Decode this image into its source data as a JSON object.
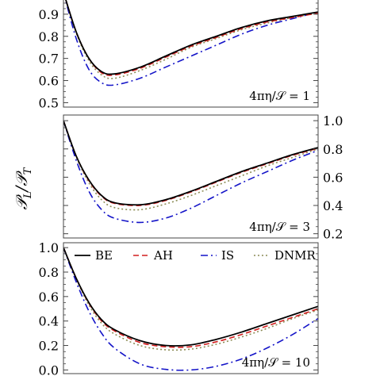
{
  "chart_data": [
    {
      "type": "line",
      "annotation": "4πη/𝒮 = 1",
      "ylim": [
        0.48,
        1.0
      ],
      "yticks": [
        0.5,
        0.6,
        0.7,
        0.8,
        0.9
      ],
      "ytick_labels": [
        "0.5",
        "0.6",
        "0.7",
        "0.8",
        "0.9"
      ],
      "ytick_side": "left",
      "x": [
        0.0,
        0.05,
        0.1,
        0.15,
        0.2,
        0.3,
        0.4,
        0.5,
        0.6,
        0.7,
        0.8,
        0.9,
        1.0
      ],
      "series": [
        {
          "name": "BE",
          "values": [
            1.0,
            0.82,
            0.7,
            0.64,
            0.63,
            0.66,
            0.71,
            0.76,
            0.8,
            0.84,
            0.87,
            0.89,
            0.91
          ]
        },
        {
          "name": "AH",
          "values": [
            1.0,
            0.82,
            0.7,
            0.635,
            0.625,
            0.655,
            0.705,
            0.755,
            0.795,
            0.835,
            0.865,
            0.885,
            0.905
          ]
        },
        {
          "name": "IS",
          "values": [
            1.0,
            0.79,
            0.65,
            0.59,
            0.58,
            0.61,
            0.66,
            0.71,
            0.76,
            0.81,
            0.85,
            0.88,
            0.91
          ]
        },
        {
          "name": "DNMR",
          "values": [
            1.0,
            0.815,
            0.69,
            0.625,
            0.61,
            0.645,
            0.695,
            0.75,
            0.79,
            0.83,
            0.86,
            0.885,
            0.905
          ]
        }
      ]
    },
    {
      "type": "line",
      "annotation": "4πη/𝒮 = 3",
      "ylim": [
        0.17,
        1.04
      ],
      "yticks": [
        0.2,
        0.4,
        0.6,
        0.8,
        1.0
      ],
      "ytick_labels": [
        "0.2",
        "0.4",
        "0.6",
        "0.8",
        "1.0"
      ],
      "ytick_side": "right",
      "x": [
        0.0,
        0.05,
        0.1,
        0.15,
        0.2,
        0.3,
        0.4,
        0.5,
        0.6,
        0.7,
        0.8,
        0.9,
        1.0
      ],
      "series": [
        {
          "name": "BE",
          "values": [
            1.0,
            0.75,
            0.58,
            0.47,
            0.42,
            0.405,
            0.44,
            0.5,
            0.57,
            0.64,
            0.7,
            0.76,
            0.81
          ]
        },
        {
          "name": "AH",
          "values": [
            1.0,
            0.75,
            0.575,
            0.465,
            0.415,
            0.4,
            0.435,
            0.495,
            0.565,
            0.635,
            0.695,
            0.755,
            0.805
          ]
        },
        {
          "name": "IS",
          "values": [
            1.0,
            0.72,
            0.5,
            0.37,
            0.31,
            0.28,
            0.31,
            0.38,
            0.47,
            0.56,
            0.64,
            0.72,
            0.79
          ]
        },
        {
          "name": "DNMR",
          "values": [
            1.0,
            0.745,
            0.56,
            0.44,
            0.385,
            0.37,
            0.41,
            0.47,
            0.54,
            0.61,
            0.68,
            0.74,
            0.8
          ]
        }
      ]
    },
    {
      "type": "line",
      "annotation": "4πη/𝒮 = 10",
      "ylim": [
        -0.03,
        1.04
      ],
      "yticks": [
        0.0,
        0.2,
        0.4,
        0.6,
        0.8,
        1.0
      ],
      "ytick_labels": [
        "0.0",
        "0.2",
        "0.4",
        "0.6",
        "0.8",
        "1.0"
      ],
      "ytick_side": "left",
      "x": [
        0.0,
        0.05,
        0.1,
        0.15,
        0.2,
        0.3,
        0.4,
        0.5,
        0.6,
        0.7,
        0.8,
        0.9,
        1.0
      ],
      "series": [
        {
          "name": "BE",
          "values": [
            1.0,
            0.75,
            0.55,
            0.41,
            0.33,
            0.24,
            0.2,
            0.205,
            0.25,
            0.31,
            0.38,
            0.45,
            0.52
          ]
        },
        {
          "name": "AH",
          "values": [
            1.0,
            0.75,
            0.545,
            0.4,
            0.32,
            0.225,
            0.19,
            0.19,
            0.23,
            0.29,
            0.36,
            0.43,
            0.5
          ]
        },
        {
          "name": "IS",
          "values": [
            1.0,
            0.72,
            0.48,
            0.3,
            0.18,
            0.05,
            0.005,
            0.0,
            0.03,
            0.09,
            0.18,
            0.29,
            0.42
          ]
        },
        {
          "name": "DNMR",
          "values": [
            1.0,
            0.745,
            0.53,
            0.38,
            0.295,
            0.2,
            0.165,
            0.17,
            0.21,
            0.27,
            0.34,
            0.42,
            0.49
          ]
        }
      ]
    }
  ],
  "ylabel": "𝒫_L/𝒫_T",
  "legend": {
    "entries": [
      "BE",
      "AH",
      "IS",
      "DNMR"
    ],
    "placement": "top of bottom panel"
  },
  "series_styles": {
    "BE": {
      "color": "#000000",
      "dash": "solid"
    },
    "AH": {
      "color": "#d21e1e",
      "dash": "dashed"
    },
    "IS": {
      "color": "#1414c8",
      "dash": "dash-dot"
    },
    "DNMR": {
      "color": "#8c8c55",
      "dash": "dotted"
    }
  }
}
